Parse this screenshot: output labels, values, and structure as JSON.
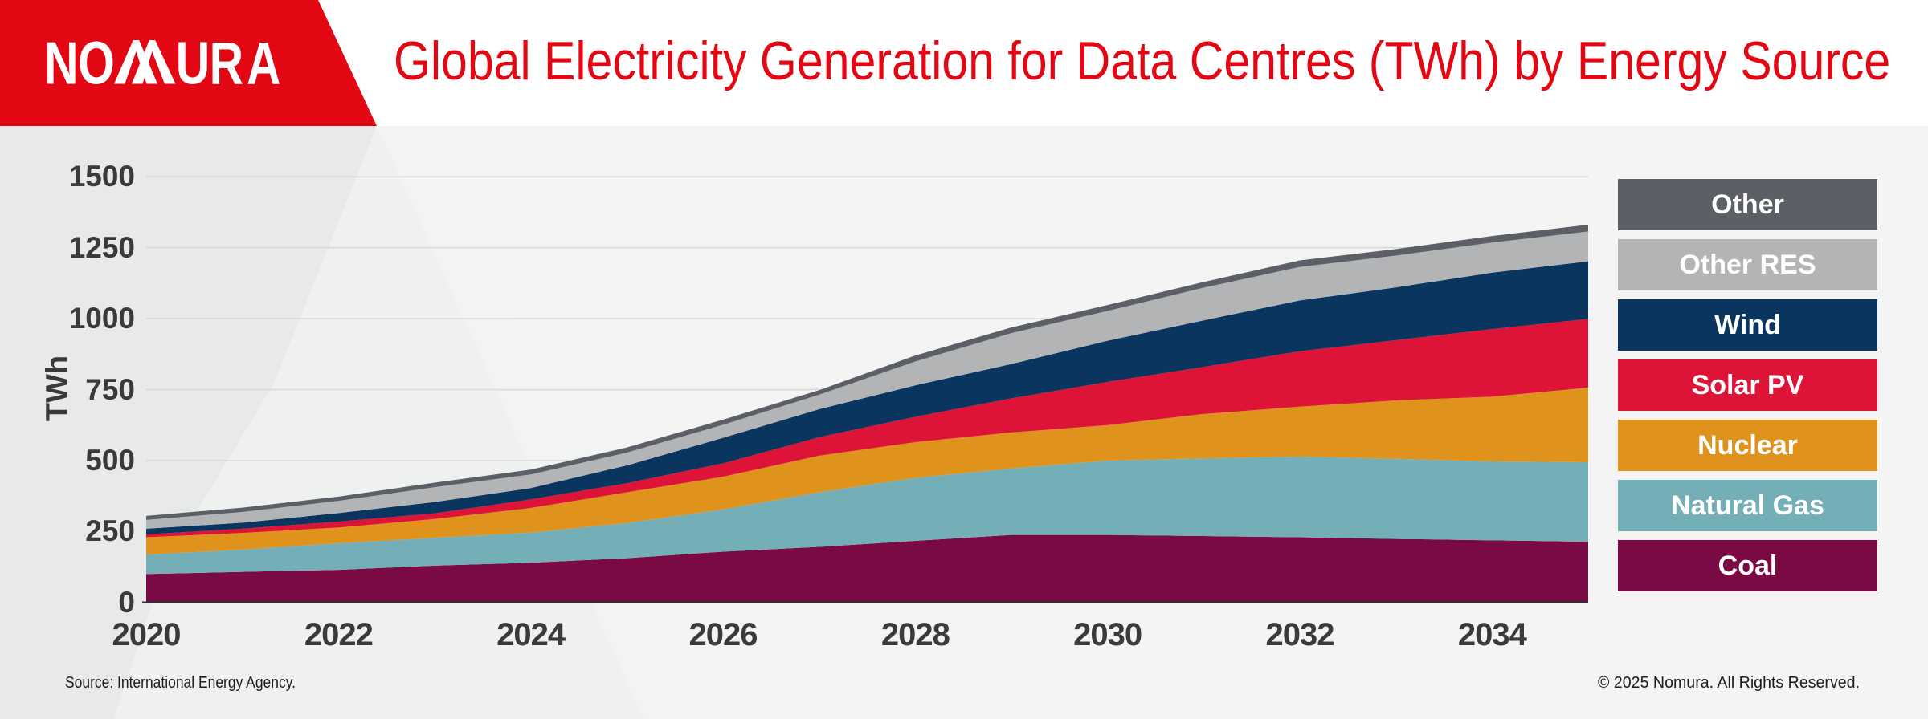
{
  "header": {
    "logo_text": "NOMURA",
    "title": "Global Electricity Generation for Data Centres (TWh) by Energy Source"
  },
  "footer": {
    "source_note": "Source: International Energy Agency.",
    "copyright": "© 2025 Nomura. All Rights Reserved."
  },
  "colors": {
    "brand_red": "#e30613",
    "title_red": "#e30613",
    "page_background": "#f2f3f3",
    "background_left": "#e8e9e9",
    "background_mid_wedge": "#eff0f0",
    "background_right": "#f4f4f5",
    "header_band": "#ffffff",
    "gridline": "#d8d8d9",
    "axis_line": "#2e2e30",
    "tick_text": "#3a3a3c",
    "footer_text": "#1c1c1c",
    "legend_text": "#ffffff"
  },
  "chart_data": {
    "type": "area",
    "stacked": true,
    "title": "Global Electricity Generation for Data Centres (TWh) by Energy Source",
    "xlabel": "",
    "ylabel": "TWh",
    "x": [
      2020,
      2021,
      2022,
      2023,
      2024,
      2025,
      2026,
      2027,
      2028,
      2029,
      2030,
      2031,
      2032,
      2033,
      2034,
      2035
    ],
    "series": [
      {
        "name": "Coal",
        "color": "#7a0a43",
        "values": [
          100,
          108,
          115,
          130,
          140,
          156,
          179,
          196,
          217,
          238,
          238,
          234,
          230,
          224,
          219,
          214
        ]
      },
      {
        "name": "Natural Gas",
        "color": "#74afb8",
        "values": [
          69,
          78,
          94,
          98,
          106,
          124,
          149,
          192,
          222,
          234,
          262,
          274,
          284,
          282,
          278,
          280
        ]
      },
      {
        "name": "Nuclear",
        "color": "#df931d",
        "values": [
          61,
          59,
          55,
          66,
          87,
          108,
          115,
          129,
          126,
          127,
          125,
          156,
          176,
          206,
          228,
          263
        ]
      },
      {
        "name": "Solar PV",
        "color": "#dd1438",
        "values": [
          10,
          15,
          21,
          20,
          30,
          32,
          47,
          65,
          89,
          120,
          152,
          166,
          195,
          212,
          238,
          242
        ]
      },
      {
        "name": "Wind",
        "color": "#0a355e",
        "values": [
          20,
          21,
          30,
          40,
          40,
          63,
          90,
          99,
          111,
          121,
          145,
          164,
          179,
          186,
          199,
          203
        ]
      },
      {
        "name": "Other RES",
        "color": "#b3b4b6",
        "values": [
          31,
          38,
          43,
          52,
          48,
          45,
          46,
          51,
          84,
          109,
          105,
          115,
          118,
          112,
          106,
          105
        ]
      },
      {
        "name": "Other",
        "color": "#5c5f65",
        "values": [
          14,
          15,
          15,
          16,
          17,
          18,
          18,
          16,
          21,
          20,
          21,
          20,
          23,
          23,
          23,
          24
        ]
      }
    ],
    "xticks": [
      2020,
      2022,
      2024,
      2026,
      2028,
      2030,
      2032,
      2034
    ],
    "yticks": [
      0,
      250,
      500,
      750,
      1000,
      1250,
      1500
    ],
    "xlim": [
      2020,
      2035
    ],
    "ylim": [
      0,
      1500
    ],
    "grid": "horizontal",
    "legend_position": "right",
    "legend_order_top_to_bottom": [
      "Other",
      "Other RES",
      "Wind",
      "Solar PV",
      "Nuclear",
      "Natural Gas",
      "Coal"
    ]
  }
}
